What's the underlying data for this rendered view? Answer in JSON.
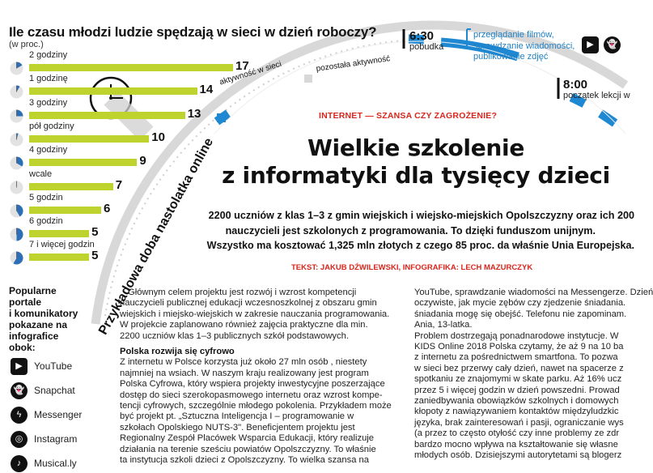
{
  "chart_data": {
    "type": "bar",
    "title": "Ile czasu młodzi ludzie spędzają w sieci w dzień roboczy?",
    "unit": "(w proc.)",
    "categories": [
      "2 godziny",
      "1 godzinę",
      "3 godziny",
      "pół godziny",
      "4 godziny",
      "wcale",
      "5 godzin",
      "6 godzin",
      "7 i więcej godzin"
    ],
    "values": [
      17,
      14,
      13,
      10,
      9,
      7,
      6,
      5,
      5
    ],
    "hours": [
      2,
      1,
      3,
      0.5,
      4,
      0,
      5,
      6,
      7
    ],
    "xlim": [
      0,
      17
    ],
    "colors": {
      "bar": "#bfd32e",
      "clock_fill": "#2d6fb6"
    }
  },
  "legend": {
    "title_lines": [
      "Popularne",
      "portale",
      "i komunikatory",
      "pokazane na",
      "infografice",
      "obok:"
    ],
    "items": [
      {
        "name": "YouTube",
        "icon": "youtube-icon",
        "glyph": "▶"
      },
      {
        "name": "Snapchat",
        "icon": "snapchat-icon",
        "glyph": "👻"
      },
      {
        "name": "Messenger",
        "icon": "messenger-icon",
        "glyph": "ϟ"
      },
      {
        "name": "Instagram",
        "icon": "instagram-icon",
        "glyph": "◎"
      },
      {
        "name": "Musical.ly",
        "icon": "musically-icon",
        "glyph": "♪"
      }
    ]
  },
  "timeline": {
    "vertical_title": "Przykładowa doba nastolatka online",
    "arc_online": "aktywność w sieci",
    "arc_other": "pozostała aktywność",
    "events": [
      {
        "time": "6:30",
        "desc": "pobudka"
      },
      {
        "time": "8:00",
        "desc": "początek lekcji w"
      }
    ],
    "activity_desc": [
      "przeglądanie filmów,",
      "sprawdzanie wiadomości,",
      "publikowanie zdjęć"
    ],
    "colors": {
      "online": "#1e88d2",
      "other": "#d8d8d8"
    }
  },
  "article": {
    "kicker": "INTERNET — SZANSA CZY ZAGROŻENIE?",
    "headline_lines": [
      "Wielkie szkolenie",
      "z informatyki dla tysięcy dzieci"
    ],
    "lead_lines": [
      "2200 uczniów z klas 1–3 z gmin wiejskich i wiejsko-miejskich Opolszczyzny oraz ich 200",
      "nauczycieli jest szkolonych z programowania. To dzięki funduszom unijnym.",
      "Wszystko ma kosztować 1,325 mln złotych z czego 85 proc. da właśnie Unia Europejska."
    ],
    "credit": "TEKST: JAKUB DŹWILEWSKI, INFOGRAFIKA: LECH MAZURCZYK",
    "col1_lines": [
      "Głównym celem projektu jest rozwój i wzrost kompetencji",
      "nauczycieli publicznej edukacji wczesnoszkolnej z obszaru gmin",
      "wiejskich i miejsko-wiejskich w zakresie nauczania programowania.",
      "W projekcie zaplanowano również zajęcia praktyczne dla min.",
      "2200 uczniów klas 1–3 publicznych szkół podstawowych."
    ],
    "col1_subhead": "Polska rozwija się cyfrowo",
    "col1b_lines": [
      "Z internetu w Polsce korzysta już około 27 mln osób , niestety",
      "najmniej na wsiach. W naszym kraju realizowany jest program",
      "Polska Cyfrowa, który wspiera projekty inwestycyjne poszerzające",
      "dostęp do sieci szerokopasmowego internetu oraz wzrost kompe-",
      "tencji cyfrowych, szczególnie młodego pokolenia. Przykładem może",
      "być projekt pt. „Sztuczna Inteligencja I – programowanie w",
      "szkołach Opolskiego NUTS-3\". Beneficjentem projektu jest",
      "Regionalny Zespół Placówek Wsparcia Edukacji, który realizuje",
      "działania na terenie sześciu powiatów Opolszczyzny. To właśnie",
      "ta instytucja szkoli dzieci z Opolszczyzny. To wielka szansa na"
    ],
    "col2_lines": [
      "YouTube, sprawdzanie wiadomości na Messengerze. Dzień",
      "oczywiste, jak mycie zębów czy zjedzenie śniadania.",
      "śniadania mogę się obejść. Telefonu nie zapominam.",
      "Ania, 13-latka.",
      "Problem dostrzegają ponadnarodowe instytucje. W",
      "KIDS Online 2018 Polska czytamy, że aż 9 na 10 ba",
      "z internetu za pośrednictwem smartfona. To pozwa",
      "w sieci bez przerwy cały dzień, nawet na spacerze z",
      "spotkaniu ze znajomymi w skate parku. Aż 16% ucz",
      "przez 5 i więcej godzin w dzień powszedni. Prowad",
      "zaniedbywania obowiązków szkolnych i domowych",
      "kłopoty z nawiązywaniem kontaktów międzyludzkic",
      "języka, brak zainteresowań i pasji, ograniczanie wys",
      "(a przez to często otyłość czy inne problemy ze zdr",
      "bardzo mocno wpływa na kształtowanie się własne",
      "młodych osób. Dzisiejszymi autorytetami są blogerz"
    ]
  }
}
